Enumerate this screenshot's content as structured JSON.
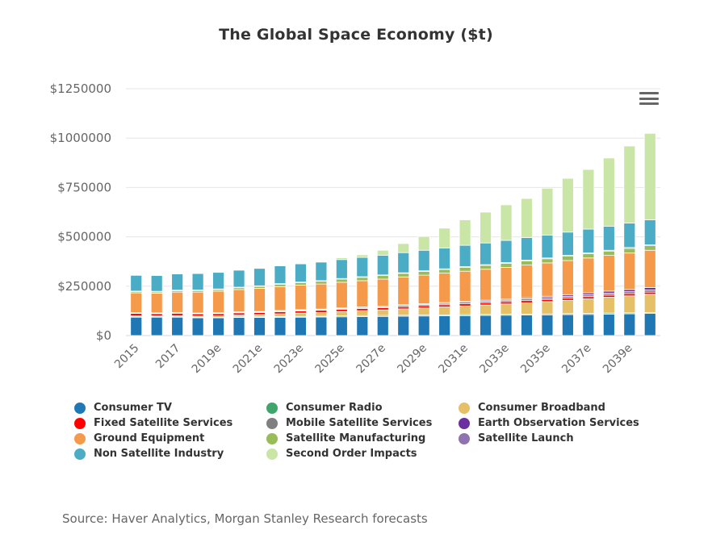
{
  "chart_data": {
    "type": "bar",
    "stacked": true,
    "title": "The Global Space Economy ($t)",
    "xlabel": "",
    "ylabel": "",
    "ylim": [
      0,
      1250000
    ],
    "y_ticks": [
      0,
      250000,
      500000,
      750000,
      1000000,
      1250000
    ],
    "y_tick_labels": [
      "$0",
      "$250000",
      "$500000",
      "$750000",
      "$1000000",
      "$1250000"
    ],
    "grid": true,
    "legend_position": "bottom",
    "categories": [
      "2015",
      "2016",
      "2017",
      "2018",
      "2019e",
      "2020e",
      "2021e",
      "2022e",
      "2023e",
      "2024e",
      "2025e",
      "2026e",
      "2027e",
      "2028e",
      "2029e",
      "2030e",
      "2031e",
      "2032e",
      "2033e",
      "2034e",
      "2035e",
      "2036e",
      "2037e",
      "2038e",
      "2039e",
      "2040e"
    ],
    "x_tick_labels_shown": [
      "2015",
      "2017",
      "2019e",
      "2021e",
      "2023e",
      "2025e",
      "2027e",
      "2029e",
      "2031e",
      "2033e",
      "2035e",
      "2037e",
      "2039e"
    ],
    "series": [
      {
        "name": "Consumer TV",
        "color": "#1f78b4",
        "values": [
          94000,
          94000,
          94000,
          91000,
          91000,
          92000,
          92000,
          92000,
          93000,
          94000,
          95000,
          96000,
          97000,
          98000,
          99000,
          100000,
          101000,
          102000,
          103000,
          104000,
          105000,
          106000,
          107000,
          109000,
          110000,
          112000
        ]
      },
      {
        "name": "Consumer Radio",
        "color": "#3fa66b",
        "values": [
          2000,
          2000,
          2000,
          2000,
          2000,
          3000,
          3000,
          4000,
          4000,
          4000,
          5000,
          5000,
          5000,
          5000,
          5000,
          5000,
          5000,
          5000,
          5000,
          5000,
          5000,
          5000,
          5000,
          5000,
          5000,
          5000
        ]
      },
      {
        "name": "Consumer Broadband",
        "color": "#e5c066",
        "values": [
          4000,
          4000,
          5000,
          6000,
          7000,
          9000,
          11000,
          14000,
          17000,
          19000,
          22000,
          25000,
          28000,
          32000,
          36000,
          40000,
          44000,
          48000,
          52000,
          57000,
          62000,
          68000,
          74000,
          80000,
          86000,
          92000
        ]
      },
      {
        "name": "Fixed Satellite Services",
        "color": "#ff0000",
        "values": [
          12000,
          11000,
          12000,
          11000,
          11000,
          11000,
          11000,
          11000,
          11000,
          11000,
          11000,
          11000,
          11000,
          11000,
          11000,
          11000,
          11000,
          11000,
          11000,
          11000,
          11000,
          11000,
          11000,
          11000,
          11000,
          11000
        ]
      },
      {
        "name": "Mobile Satellite Services",
        "color": "#808080",
        "values": [
          3000,
          3000,
          3000,
          3000,
          4000,
          4000,
          4000,
          5000,
          5000,
          5000,
          6000,
          6000,
          6000,
          7000,
          7000,
          7000,
          8000,
          8000,
          8000,
          9000,
          9000,
          9000,
          10000,
          10000,
          10000,
          11000
        ]
      },
      {
        "name": "Earth Observation Services",
        "color": "#6a30a0",
        "values": [
          1000,
          1000,
          1000,
          1000,
          1000,
          1000,
          1000,
          1000,
          1000,
          1000,
          1000,
          2000,
          2000,
          3000,
          3000,
          4000,
          4000,
          5000,
          5000,
          6000,
          7000,
          8000,
          9000,
          10000,
          11000,
          12000
        ]
      },
      {
        "name": "Ground Equipment",
        "color": "#f59a4b",
        "values": [
          100000,
          100000,
          103000,
          106000,
          109000,
          113000,
          117000,
          121000,
          124000,
          127000,
          130000,
          133000,
          137000,
          141000,
          145000,
          149000,
          153000,
          157000,
          161000,
          165000,
          169000,
          173000,
          177000,
          181000,
          185000,
          189000
        ]
      },
      {
        "name": "Satellite Manufacturing",
        "color": "#97bc58",
        "values": [
          8000,
          8000,
          9000,
          10000,
          10000,
          11000,
          12000,
          13000,
          14000,
          15000,
          16000,
          17000,
          18000,
          18000,
          19000,
          19000,
          20000,
          20000,
          21000,
          21000,
          21000,
          22000,
          22000,
          22000,
          23000,
          23000
        ]
      },
      {
        "name": "Satellite Launch",
        "color": "#8f72b0",
        "values": [
          1000,
          1000,
          1000,
          1000,
          1000,
          1000,
          1000,
          2000,
          2000,
          2000,
          3000,
          3000,
          3000,
          3000,
          3000,
          3000,
          3000,
          3000,
          4000,
          4000,
          4000,
          4000,
          4000,
          4000,
          5000,
          5000
        ]
      },
      {
        "name": "Non Satellite Industry",
        "color": "#4bacc6",
        "values": [
          80000,
          80000,
          82000,
          83000,
          84000,
          86000,
          88000,
          90000,
          92000,
          94000,
          96000,
          98000,
          100000,
          102000,
          104000,
          106000,
          108000,
          110000,
          112000,
          114000,
          116000,
          118000,
          120000,
          122000,
          124000,
          126000
        ]
      },
      {
        "name": "Second Order Impacts",
        "color": "#c9e6a6",
        "values": [
          0,
          0,
          0,
          0,
          0,
          0,
          0,
          0,
          0,
          0,
          9000,
          13000,
          25000,
          46000,
          70000,
          100000,
          129000,
          156000,
          180000,
          198000,
          237000,
          272000,
          302000,
          345000,
          390000,
          438000
        ]
      }
    ]
  },
  "menu": {
    "icon": "hamburger-menu-icon"
  },
  "legend": {
    "items": [
      {
        "label": "Consumer TV",
        "color": "#1f78b4"
      },
      {
        "label": "Consumer Radio",
        "color": "#3fa66b"
      },
      {
        "label": "Consumer Broadband",
        "color": "#e5c066"
      },
      {
        "label": "Fixed Satellite Services",
        "color": "#ff0000"
      },
      {
        "label": "Mobile Satellite Services",
        "color": "#808080"
      },
      {
        "label": "Earth Observation Services",
        "color": "#6a30a0"
      },
      {
        "label": "Ground Equipment",
        "color": "#f59a4b"
      },
      {
        "label": "Satellite Manufacturing",
        "color": "#97bc58"
      },
      {
        "label": "Satellite Launch",
        "color": "#8f72b0"
      },
      {
        "label": "Non Satellite Industry",
        "color": "#4bacc6"
      },
      {
        "label": "Second Order Impacts",
        "color": "#c9e6a6"
      }
    ]
  },
  "source": "Source: Haver Analytics, Morgan Stanley Research forecasts"
}
